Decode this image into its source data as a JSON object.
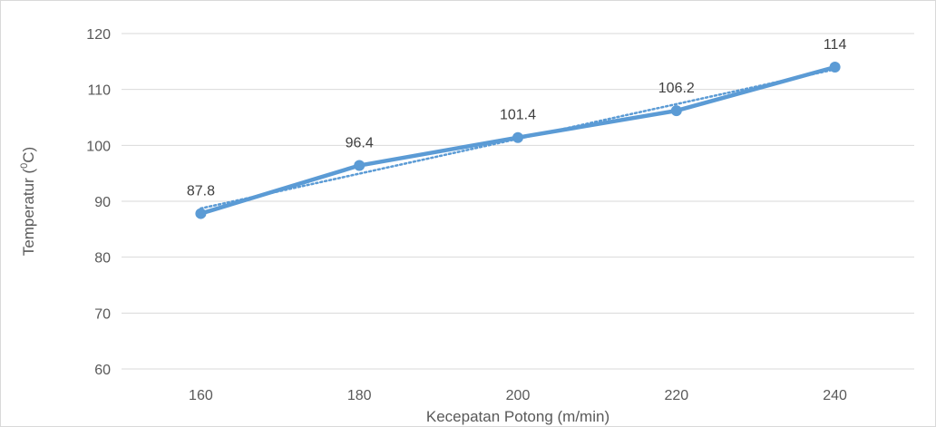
{
  "chart_data": {
    "type": "line",
    "title": "",
    "xlabel": "Kecepatan Potong (m/min)",
    "ylabel": {
      "prefix": "Temperatur (",
      "superscript": "0",
      "suffix": "C)"
    },
    "categories": [
      "160",
      "180",
      "200",
      "220",
      "240"
    ],
    "series": [
      {
        "values": [
          87.8,
          96.4,
          101.4,
          106.2,
          114
        ],
        "data_labels": [
          "87.8",
          "96.4",
          "101.4",
          "106.2",
          "114"
        ],
        "color": "#5b9bd5",
        "marker": "circle"
      }
    ],
    "trendline": {
      "type": "linear",
      "style": "dotted",
      "color": "#5b9bd5"
    },
    "ylim": [
      60,
      120
    ],
    "y_ticks": [
      60,
      70,
      80,
      90,
      100,
      110,
      120
    ],
    "grid": true,
    "legend": "none"
  }
}
